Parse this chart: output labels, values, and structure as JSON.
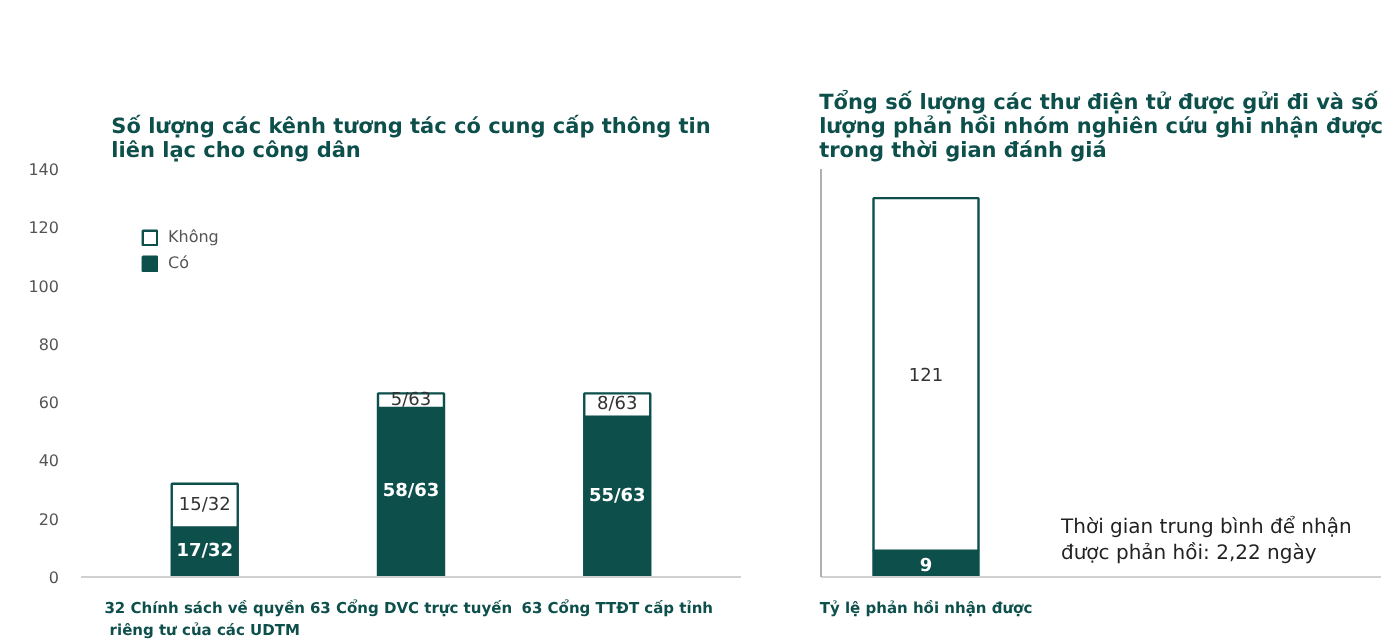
{
  "chart_data": [
    {
      "type": "bar",
      "title": "Số lượng các kênh tương tác có cung cấp thông tin\nliên lạc cho công dân",
      "stacked": true,
      "categories": [
        "32 Chính sách về quyền riêng tư của các UDTM",
        "63 Cổng DVC trực tuyến",
        "63 Cổng TTĐT cấp tỉnh"
      ],
      "series": [
        {
          "name": "Có",
          "color": "#0d4f4b",
          "values": [
            17,
            58,
            55
          ],
          "value_labels": [
            "17/32",
            "58/63",
            "55/63"
          ]
        },
        {
          "name": "Không",
          "color": "#ffffff",
          "values": [
            15,
            5,
            8
          ],
          "value_labels": [
            "15/32",
            "5/63",
            "8/63"
          ]
        }
      ],
      "ylim": [
        0,
        140
      ],
      "yticks": [
        0,
        20,
        40,
        60,
        80,
        100,
        120,
        140
      ],
      "legend": "top left",
      "grid": false
    },
    {
      "type": "bar",
      "title": "Tổng số lượng các thư điện tử được gửi đi và số\nlượng phản hồi nhóm nghiên cứu ghi nhận được\ntrong thời gian đánh giá",
      "stacked": true,
      "categories": [
        "Tỷ lệ phản hồi nhận được"
      ],
      "series": [
        {
          "color": "#0d4f4b",
          "values": [
            9
          ]
        },
        {
          "color": "#ffffff",
          "values": [
            121
          ]
        }
      ],
      "data_labels": true,
      "ylim": [
        0,
        140
      ],
      "tick_labels": "x",
      "grid": false,
      "annotations": [
        "Thời gian trung bình để nhận\nđược phản hồi: 2,22 ngày"
      ]
    }
  ]
}
